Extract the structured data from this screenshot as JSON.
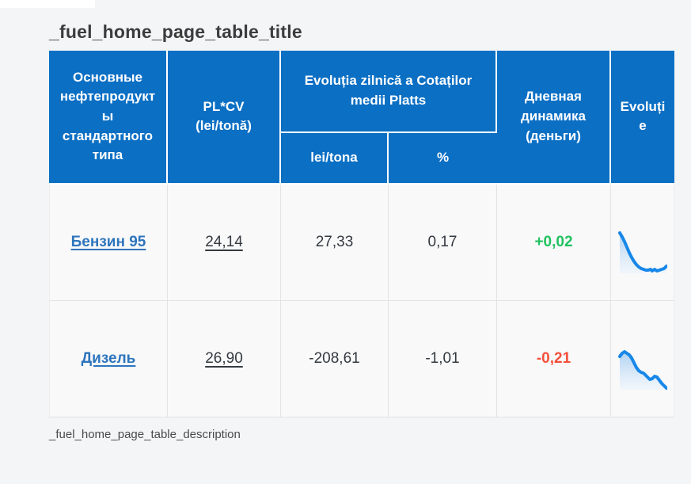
{
  "page": {
    "title": "_fuel_home_page_table_title",
    "description": "_fuel_home_page_table_description"
  },
  "table": {
    "headers": {
      "products": "Основные нефтепродукты стандартного типа",
      "plcv": "PL*CV (lei/tonă)",
      "evolution_group": "Evoluția zilnică a Cotaților medii Platts",
      "evolution_lei": "lei/tona",
      "evolution_pct": "%",
      "dynamics": "Дневная динамика (деньги)",
      "chart": "Evoluție"
    },
    "rows": [
      {
        "name": "Бензин 95",
        "plcv": "24,14",
        "evo_lei": "27,33",
        "evo_pct": "0,17",
        "dynamics": "+0,02"
      },
      {
        "name": "Дизель",
        "plcv": "26,90",
        "evo_lei": "-208,61",
        "evo_pct": "-1,01",
        "dynamics": "-0,21"
      }
    ]
  },
  "colors": {
    "blue": "#0b6fc4",
    "header-text": "#ffffff",
    "link": "#2e75bc",
    "pos": "#20c25e",
    "neg": "#f4503c",
    "spark": "#1787e8",
    "spark-fill-top": "#a9cef1",
    "spark-fill-bottom": "#eaf3fc",
    "page-bg": "#f4f5f6",
    "cell-bg": "#f9f9fa",
    "border": "#e2e3e5",
    "text-dark": "#343a40",
    "title-color": "#3c3c3c",
    "desc-color": "#4a4a4a"
  },
  "chart_data": [
    {
      "type": "line",
      "series_for": "Бензин 95",
      "trend": "down-then-flat",
      "stroke": "#1787e8",
      "points": [
        [
          2,
          5
        ],
        [
          5,
          10
        ],
        [
          8,
          16
        ],
        [
          11,
          23
        ],
        [
          14,
          30
        ],
        [
          17,
          36
        ],
        [
          20,
          41
        ],
        [
          23,
          45
        ],
        [
          26,
          48
        ],
        [
          29,
          50
        ],
        [
          32,
          51
        ],
        [
          35,
          52
        ],
        [
          38,
          52
        ],
        [
          41,
          51
        ],
        [
          43,
          53
        ],
        [
          46,
          51
        ],
        [
          49,
          53
        ],
        [
          52,
          52
        ],
        [
          55,
          51
        ],
        [
          58,
          50
        ],
        [
          61,
          47
        ]
      ]
    },
    {
      "type": "line",
      "series_for": "Дизель",
      "trend": "down-stepped",
      "stroke": "#1787e8",
      "points": [
        [
          2,
          14
        ],
        [
          5,
          10
        ],
        [
          8,
          8
        ],
        [
          11,
          10
        ],
        [
          14,
          12
        ],
        [
          17,
          16
        ],
        [
          20,
          22
        ],
        [
          23,
          28
        ],
        [
          26,
          32
        ],
        [
          29,
          34
        ],
        [
          32,
          35
        ],
        [
          35,
          38
        ],
        [
          38,
          41
        ],
        [
          40,
          43
        ],
        [
          43,
          42
        ],
        [
          46,
          39
        ],
        [
          49,
          40
        ],
        [
          52,
          44
        ],
        [
          55,
          48
        ],
        [
          58,
          51
        ],
        [
          61,
          54
        ]
      ]
    }
  ]
}
